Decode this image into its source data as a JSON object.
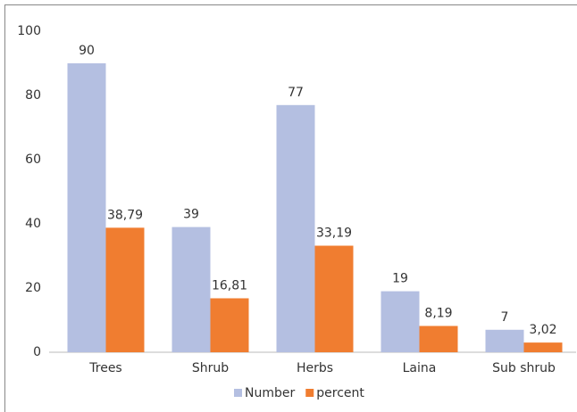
{
  "chart_data": {
    "type": "bar",
    "categories": [
      "Trees",
      "Shrub",
      "Herbs",
      "Laina",
      "Sub shrub"
    ],
    "series": [
      {
        "name": "Number",
        "color": "#b4bfe1",
        "values": [
          90,
          39,
          77,
          19,
          7
        ]
      },
      {
        "name": "percent",
        "color": "#f07d30",
        "values": [
          38.79,
          16.81,
          33.19,
          8.19,
          3.02
        ],
        "value_labels": [
          "38,79",
          "16,81",
          "33,19",
          "8,19",
          "3,02"
        ]
      }
    ],
    "ylim": [
      0,
      100
    ],
    "yticks": [
      0,
      20,
      40,
      60,
      80,
      100
    ],
    "grid": false,
    "legend": "bottom"
  }
}
